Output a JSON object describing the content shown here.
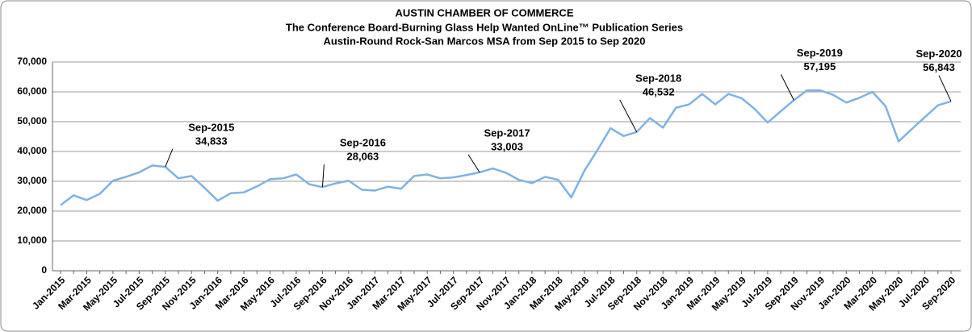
{
  "chart_data": {
    "type": "line",
    "title": [
      "AUSTIN CHAMBER OF COMMERCE",
      "The Conference Board-Burning Glass Help Wanted OnLine™ Publication Series",
      "Austin-Round Rock-San Marcos MSA from Sep 2015 to Sep 2020"
    ],
    "categories": [
      "Jan-2015",
      null,
      "Mar-2015",
      null,
      "May-2015",
      null,
      "Jul-2015",
      null,
      "Sep-2015",
      null,
      "Nov-2015",
      null,
      "Jan-2016",
      null,
      "Mar-2016",
      null,
      "May-2016",
      null,
      "Jul-2016",
      null,
      "Sep-2016",
      null,
      "Nov-2016",
      null,
      "Jan-2017",
      null,
      "Mar-2017",
      null,
      "May-2017",
      null,
      "Jul-2017",
      null,
      "Sep-2017",
      null,
      "Nov-2017",
      null,
      "Jan-2018",
      null,
      "Mar-2018",
      null,
      "May-2018",
      null,
      "Jul-2018",
      null,
      "Sep-2018",
      null,
      "Nov-2018",
      null,
      "Jan-2019",
      null,
      "Mar-2019",
      null,
      "May-2019",
      null,
      "Jul-2019",
      null,
      "Sep-2019",
      null,
      "Nov-2019",
      null,
      "Jan-2020",
      null,
      "Mar-2020",
      null,
      "May-2020",
      null,
      "Jul-2020",
      null,
      "Sep-2020"
    ],
    "values": [
      22000,
      25300,
      23700,
      25800,
      30200,
      31500,
      33000,
      35300,
      34833,
      31000,
      31800,
      27800,
      23500,
      26000,
      26300,
      28300,
      30700,
      31000,
      32300,
      29000,
      28063,
      29300,
      30200,
      27200,
      26900,
      28200,
      27500,
      31800,
      32300,
      31000,
      31300,
      32100,
      33003,
      34300,
      32900,
      30500,
      29400,
      31500,
      30500,
      24600,
      33500,
      40500,
      47800,
      45200,
      46532,
      51200,
      48000,
      54700,
      55800,
      59300,
      55800,
      59300,
      57900,
      54300,
      49700,
      53500,
      57195,
      60500,
      60500,
      59000,
      56400,
      58000,
      60000,
      55200,
      43400,
      47500,
      51500,
      55500,
      56843
    ],
    "color": "#7fb2e5",
    "ylim": [
      0,
      70000
    ],
    "yticks": [
      0,
      {
        "value": 10000,
        "label": "10,000"
      },
      {
        "value": 20000,
        "label": "20,000"
      },
      {
        "value": 30000,
        "label": "30,000"
      },
      {
        "value": 40000,
        "label": "40,000"
      },
      {
        "value": 50000,
        "label": "50,000"
      },
      {
        "value": 60000,
        "label": "60,000"
      },
      {
        "value": 70000,
        "label": "70,000"
      }
    ],
    "grid": true,
    "annotations": [
      {
        "category": "Sep-2015",
        "value": 34833,
        "label": "34,833"
      },
      {
        "category": "Sep-2016",
        "value": 28063,
        "label": "28,063"
      },
      {
        "category": "Sep-2017",
        "value": 33003,
        "label": "33,003"
      },
      {
        "category": "Sep-2018",
        "value": 46532,
        "label": "46,532"
      },
      {
        "category": "Sep-2019",
        "value": 57195,
        "label": "57,195"
      },
      {
        "category": "Sep-2020",
        "value": 56843,
        "label": "56,843"
      }
    ]
  }
}
